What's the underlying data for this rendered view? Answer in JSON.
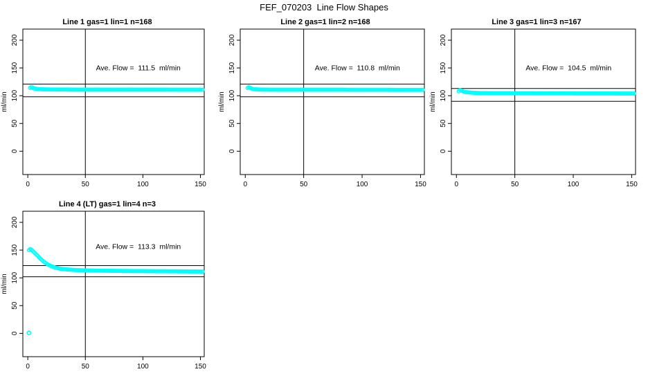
{
  "page": {
    "title": "FEF_070203  Line Flow Shapes"
  },
  "colors": {
    "points": "#00ffff",
    "axis_and_lines": "#000000",
    "background": "#ffffff"
  },
  "axis": {
    "x_ticks": [
      0,
      50,
      100,
      150
    ],
    "y_ticks": [
      0,
      50,
      100,
      150,
      200
    ],
    "y_label": "ml/min",
    "xlim": [
      -4.3,
      153.3
    ],
    "ylim": [
      -42,
      220
    ],
    "grid": false
  },
  "chart_data": [
    {
      "type": "scatter",
      "title": "Line 1 gas=1 lin=1 n=168",
      "annotation": "Ave. Flow =  111.5  ml/min",
      "ave_flow_ml_min": 111.5,
      "ylabel": "ml/min",
      "v_line_x": 50,
      "h_lines": [
        121,
        98
      ],
      "x_range": [
        2,
        152
      ],
      "ann_xy": [
        96,
        146
      ],
      "profile": [
        [
          2,
          114
        ],
        [
          3,
          115.5
        ],
        [
          4,
          115
        ],
        [
          5,
          113.5
        ],
        [
          7,
          112.5
        ],
        [
          10,
          111.8
        ],
        [
          15,
          111.4
        ],
        [
          20,
          111.2
        ],
        [
          30,
          111.1
        ],
        [
          50,
          111.0
        ],
        [
          75,
          111.0
        ],
        [
          100,
          111.0
        ],
        [
          125,
          110.9
        ],
        [
          152,
          110.8
        ]
      ],
      "extra_points": []
    },
    {
      "type": "scatter",
      "title": "Line 2 gas=1 lin=2 n=168",
      "annotation": "Ave. Flow =  110.8  ml/min",
      "ave_flow_ml_min": 110.8,
      "ylabel": "ml/min",
      "v_line_x": 50,
      "h_lines": [
        121,
        98
      ],
      "x_range": [
        2,
        152
      ],
      "ann_xy": [
        96,
        146
      ],
      "profile": [
        [
          2,
          114
        ],
        [
          3,
          115.5
        ],
        [
          4,
          114.5
        ],
        [
          5,
          113
        ],
        [
          7,
          112
        ],
        [
          10,
          111.3
        ],
        [
          15,
          111.0
        ],
        [
          20,
          110.9
        ],
        [
          30,
          110.8
        ],
        [
          50,
          110.8
        ],
        [
          75,
          110.8
        ],
        [
          100,
          110.7
        ],
        [
          125,
          110.6
        ],
        [
          152,
          110.5
        ]
      ],
      "extra_points": []
    },
    {
      "type": "scatter",
      "title": "Line 3 gas=1 lin=3 n=167",
      "annotation": "Ave. Flow =  104.5  ml/min",
      "ave_flow_ml_min": 104.5,
      "ylabel": "ml/min",
      "v_line_x": 50,
      "h_lines": [
        113,
        90
      ],
      "x_range": [
        2,
        152
      ],
      "ann_xy": [
        96,
        146
      ],
      "profile": [
        [
          2,
          108
        ],
        [
          3,
          110
        ],
        [
          4,
          109.5
        ],
        [
          5,
          108.5
        ],
        [
          7,
          107
        ],
        [
          10,
          106
        ],
        [
          15,
          105.2
        ],
        [
          20,
          104.8
        ],
        [
          30,
          104.6
        ],
        [
          50,
          104.5
        ],
        [
          75,
          104.3
        ],
        [
          100,
          104.2
        ],
        [
          125,
          104.1
        ],
        [
          152,
          104.0
        ]
      ],
      "extra_points": []
    },
    {
      "type": "scatter",
      "title": "Line 4 (LT) gas=1 lin=4 n=3",
      "annotation": "Ave. Flow =  113.3  ml/min",
      "ave_flow_ml_min": 113.3,
      "ylabel": "ml/min",
      "v_line_x": 50,
      "h_lines": [
        122,
        102
      ],
      "x_range": [
        1,
        152
      ],
      "ann_xy": [
        96,
        152
      ],
      "profile": [
        [
          1,
          150
        ],
        [
          2,
          152
        ],
        [
          3,
          151
        ],
        [
          4,
          149
        ],
        [
          5,
          147
        ],
        [
          6,
          145
        ],
        [
          7,
          143
        ],
        [
          8,
          141
        ],
        [
          9,
          139
        ],
        [
          10,
          136.5
        ],
        [
          11,
          134.5
        ],
        [
          12,
          132.5
        ],
        [
          13,
          131
        ],
        [
          14,
          129
        ],
        [
          15,
          127.5
        ],
        [
          16,
          126
        ],
        [
          17,
          124.5
        ],
        [
          18,
          123.5
        ],
        [
          19,
          122.5
        ],
        [
          20,
          121.5
        ],
        [
          22,
          120
        ],
        [
          24,
          118.5
        ],
        [
          26,
          117.5
        ],
        [
          28,
          116.5
        ],
        [
          30,
          116
        ],
        [
          35,
          115
        ],
        [
          40,
          114.3
        ],
        [
          45,
          113.8
        ],
        [
          50,
          113.5
        ],
        [
          60,
          113
        ],
        [
          70,
          112.8
        ],
        [
          80,
          112.5
        ],
        [
          90,
          112.3
        ],
        [
          100,
          112.2
        ],
        [
          110,
          112
        ],
        [
          125,
          111.8
        ],
        [
          140,
          111.5
        ],
        [
          152,
          111.3
        ]
      ],
      "extra_points": [
        [
          1,
          1
        ]
      ]
    }
  ]
}
